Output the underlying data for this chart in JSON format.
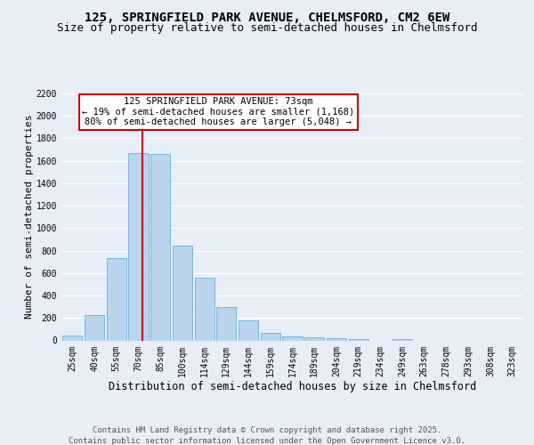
{
  "title1": "125, SPRINGFIELD PARK AVENUE, CHELMSFORD, CM2 6EW",
  "title2": "Size of property relative to semi-detached houses in Chelmsford",
  "xlabel": "Distribution of semi-detached houses by size in Chelmsford",
  "ylabel": "Number of semi-detached properties",
  "categories": [
    "25sqm",
    "40sqm",
    "55sqm",
    "70sqm",
    "85sqm",
    "100sqm",
    "114sqm",
    "129sqm",
    "144sqm",
    "159sqm",
    "174sqm",
    "189sqm",
    "204sqm",
    "219sqm",
    "234sqm",
    "249sqm",
    "263sqm",
    "278sqm",
    "293sqm",
    "308sqm",
    "323sqm"
  ],
  "values": [
    45,
    225,
    730,
    1670,
    1660,
    845,
    560,
    295,
    175,
    65,
    38,
    28,
    18,
    12,
    0,
    12,
    0,
    0,
    0,
    0,
    0
  ],
  "bar_color": "#bad4ee",
  "bar_edge_color": "#6aaed6",
  "vline_color": "#cc0000",
  "property_label": "125 SPRINGFIELD PARK AVENUE: 73sqm",
  "smaller_line": "← 19% of semi-detached houses are smaller (1,168)",
  "larger_line": "80% of semi-detached houses are larger (5,048) →",
  "ylim": [
    0,
    2200
  ],
  "yticks": [
    0,
    200,
    400,
    600,
    800,
    1000,
    1200,
    1400,
    1600,
    1800,
    2000,
    2200
  ],
  "background_color": "#e8eef8",
  "grid_color": "#ffffff",
  "footnote1": "Contains HM Land Registry data © Crown copyright and database right 2025.",
  "footnote2": "Contains public sector information licensed under the Open Government Licence v3.0.",
  "title1_fontsize": 10,
  "title2_fontsize": 9,
  "xlabel_fontsize": 8.5,
  "ylabel_fontsize": 8,
  "tick_fontsize": 7,
  "annotation_fontsize": 7.5,
  "footnote_fontsize": 6.5
}
